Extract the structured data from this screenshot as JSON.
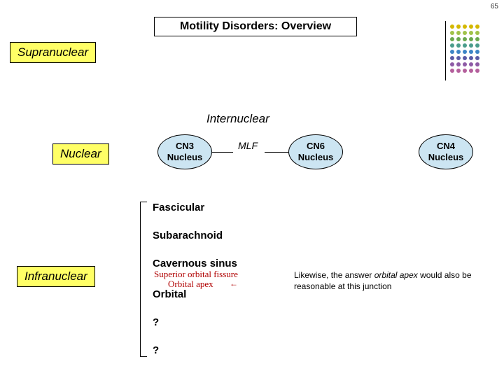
{
  "slide": {
    "number": "65"
  },
  "title": "Motility Disorders: Overview",
  "labels": {
    "supranuclear": "Supranuclear",
    "internuclear": "Internuclear",
    "nuclear": "Nuclear",
    "infranuclear": "Infranuclear"
  },
  "nuclei": {
    "cn3": "CN3 Nucleus",
    "cn6": "CN6 Nucleus",
    "cn4": "CN4 Nucleus",
    "mlf": "MLF"
  },
  "terms": {
    "fascicular": "Fascicular",
    "subarachnoid": "Subarachnoid",
    "cavernous": "Cavernous sinus",
    "orbital": "Orbital",
    "q1": "?",
    "q2": "?"
  },
  "script": {
    "sof": "Superior orbital fissure",
    "apex": "Orbital apex"
  },
  "note": {
    "pre": "Likewise, the answer ",
    "ital": "orbital apex",
    "post": " would also be reasonable at this junction"
  },
  "dotgrid": {
    "rows": 8,
    "cols": 5,
    "colors": [
      "#d4b800",
      "#a0c24a",
      "#6aa84f",
      "#4a9c8c",
      "#3d85c6",
      "#5b5ba6",
      "#8e5ba6",
      "#b45f9c"
    ],
    "dot_size": 6,
    "gap": 3
  },
  "style": {
    "bg": "#ffffff",
    "highlight": "#ffff66",
    "ellipse_fill": "#cce5f2",
    "script_color": "#b00000"
  }
}
